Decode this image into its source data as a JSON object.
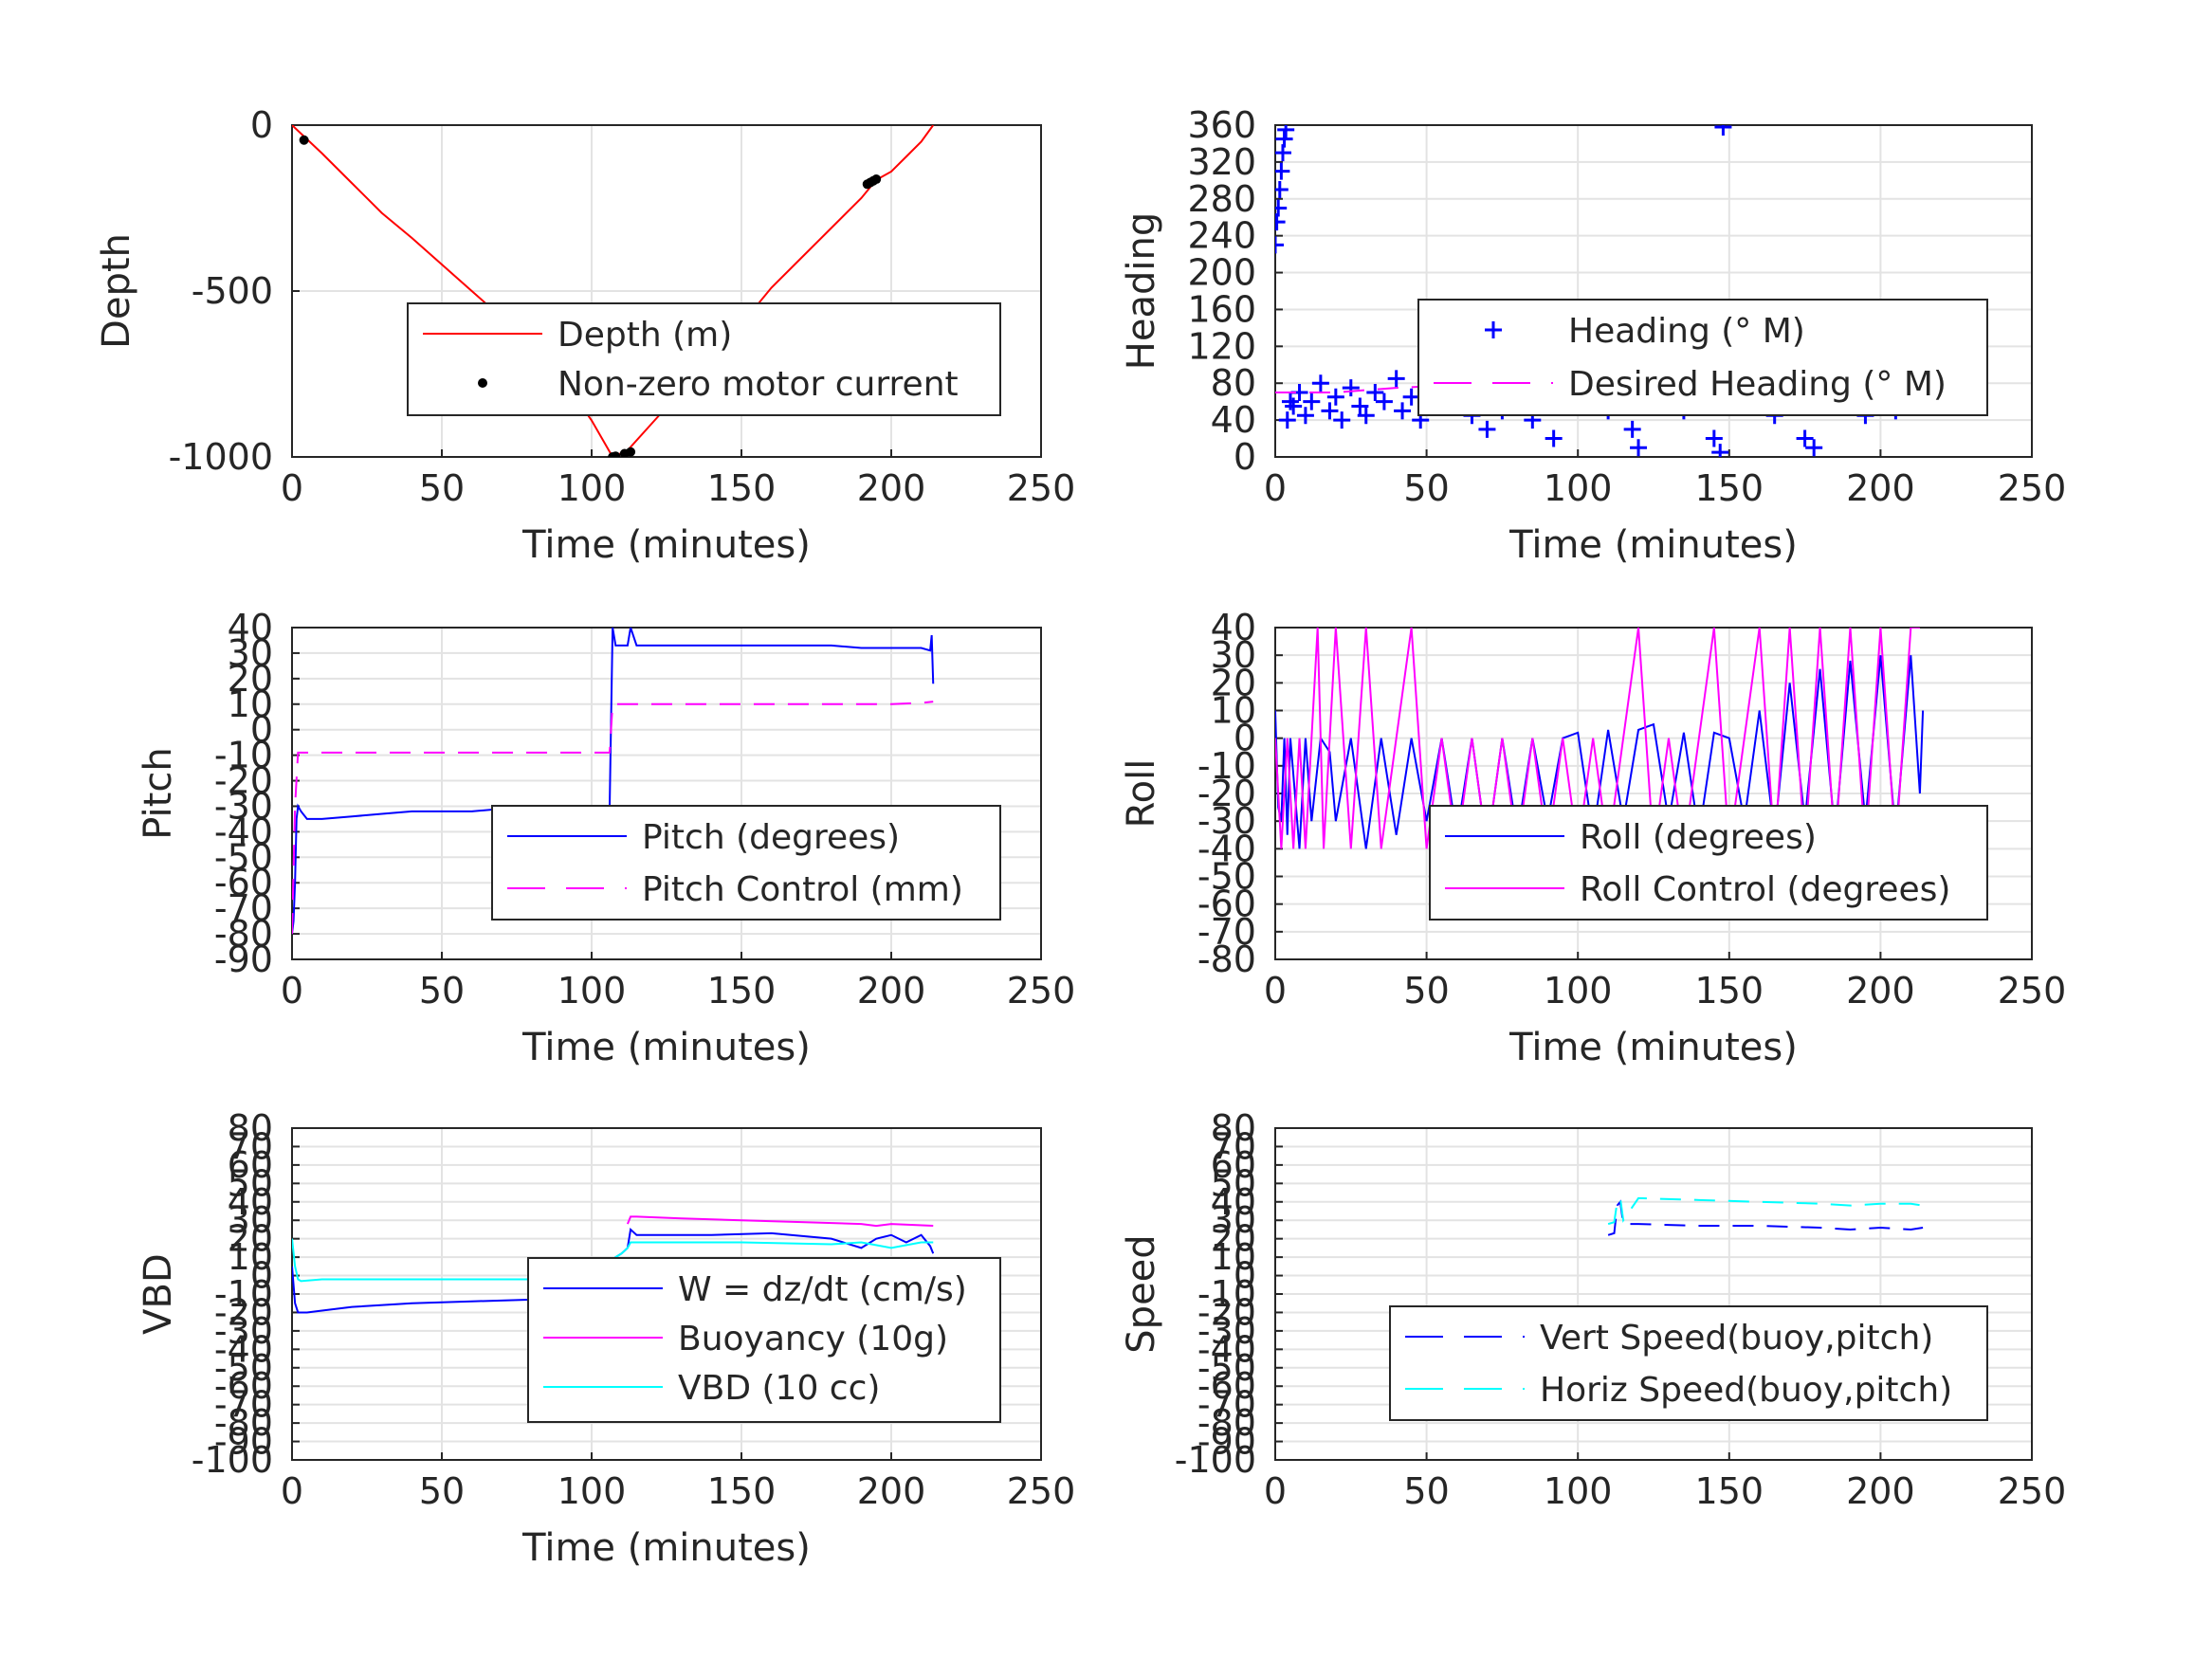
{
  "chart_data": [
    {
      "type": "line",
      "panel": "depth",
      "xlabel": "Time (minutes)",
      "ylabel": "Depth",
      "xlim": [
        0,
        250
      ],
      "ylim": [
        -1000,
        0
      ],
      "xticks": [
        0,
        50,
        100,
        150,
        200,
        250
      ],
      "yticks": [
        -1000,
        -500,
        0
      ],
      "xtick_labels": [
        "0",
        "50",
        "100",
        "150",
        "200",
        "250"
      ],
      "ytick_labels": [
        "-1000",
        "-500",
        "0"
      ],
      "grid": true,
      "legend_position": "center-right",
      "series": [
        {
          "name": "Depth (m)",
          "color": "#ff0000",
          "style": "solid",
          "marker": "none",
          "x": [
            0,
            10,
            20,
            30,
            40,
            50,
            60,
            70,
            80,
            90,
            100,
            107,
            112,
            120,
            130,
            140,
            150,
            160,
            170,
            180,
            190,
            195,
            200,
            205,
            210,
            214
          ],
          "y": [
            0,
            -85,
            -175,
            -265,
            -340,
            -420,
            -500,
            -580,
            -660,
            -760,
            -890,
            -1000,
            -980,
            -900,
            -800,
            -700,
            -600,
            -490,
            -400,
            -310,
            -220,
            -165,
            -140,
            -95,
            -50,
            0
          ]
        },
        {
          "name": "Non-zero motor current",
          "color": "#000000",
          "style": "none",
          "marker": "dot",
          "x": [
            4,
            107,
            108,
            111,
            113,
            192,
            193,
            194,
            195
          ],
          "y": [
            -45,
            -1000,
            -998,
            -990,
            -985,
            -178,
            -173,
            -168,
            -163
          ]
        }
      ]
    },
    {
      "type": "scatter",
      "panel": "heading",
      "xlabel": "Time (minutes)",
      "ylabel": "Heading",
      "xlim": [
        0,
        250
      ],
      "ylim": [
        0,
        360
      ],
      "xticks": [
        0,
        50,
        100,
        150,
        200,
        250
      ],
      "yticks": [
        0,
        40,
        80,
        120,
        160,
        200,
        240,
        280,
        320,
        360
      ],
      "xtick_labels": [
        "0",
        "50",
        "100",
        "150",
        "200",
        "250"
      ],
      "ytick_labels": [
        "0",
        "40",
        "80",
        "120",
        "160",
        "200",
        "240",
        "280",
        "320",
        "360"
      ],
      "grid": true,
      "legend_position": "center-right",
      "series": [
        {
          "name": "Heading (° M)",
          "color": "#0000ff",
          "style": "none",
          "marker": "plus",
          "x": [
            0,
            0.5,
            1,
            1.5,
            2,
            2.5,
            3,
            3.5,
            4,
            5,
            6,
            8,
            10,
            12,
            15,
            18,
            20,
            22,
            25,
            28,
            30,
            33,
            36,
            40,
            42,
            45,
            48,
            50,
            55,
            60,
            65,
            70,
            72,
            75,
            80,
            85,
            90,
            92,
            95,
            100,
            105,
            110,
            115,
            118,
            120,
            123,
            125,
            128,
            130,
            135,
            140,
            145,
            147,
            148,
            150,
            152,
            155,
            160,
            165,
            170,
            175,
            178,
            180,
            185,
            190,
            195,
            200,
            205,
            210,
            214
          ],
          "y": [
            230,
            255,
            270,
            290,
            310,
            330,
            345,
            355,
            40,
            60,
            55,
            70,
            45,
            60,
            80,
            50,
            65,
            40,
            75,
            55,
            45,
            70,
            60,
            85,
            50,
            65,
            40,
            60,
            55,
            75,
            45,
            30,
            65,
            50,
            60,
            40,
            70,
            20,
            55,
            60,
            80,
            50,
            90,
            30,
            10,
            60,
            110,
            130,
            70,
            50,
            75,
            20,
            5,
            358,
            100,
            140,
            60,
            80,
            45,
            65,
            20,
            10,
            60,
            55,
            70,
            45,
            60,
            50,
            75,
            60
          ]
        },
        {
          "name": "Desired Heading (° M)",
          "color": "#ff00ff",
          "style": "dash",
          "marker": "none",
          "x": [
            0,
            20,
            40,
            60,
            80,
            100,
            120,
            140,
            160,
            180,
            200,
            214
          ],
          "y": [
            70,
            70,
            75,
            78,
            80,
            80,
            60,
            60,
            60,
            55,
            55,
            55
          ]
        }
      ]
    },
    {
      "type": "line",
      "panel": "pitch",
      "xlabel": "Time (minutes)",
      "ylabel": "Pitch",
      "xlim": [
        0,
        250
      ],
      "ylim": [
        -90,
        40
      ],
      "xticks": [
        0,
        50,
        100,
        150,
        200,
        250
      ],
      "yticks": [
        -90,
        -80,
        -70,
        -60,
        -50,
        -40,
        -30,
        -20,
        -10,
        0,
        10,
        20,
        30,
        40
      ],
      "xtick_labels": [
        "0",
        "50",
        "100",
        "150",
        "200",
        "250"
      ],
      "ytick_labels": [
        "-90",
        "-80",
        "-70",
        "-60",
        "-50",
        "-40",
        "-30",
        "-20",
        "-10",
        "0",
        "10",
        "20",
        "30",
        "40"
      ],
      "grid": true,
      "legend_position": "center-right",
      "series": [
        {
          "name": "Pitch (degrees)",
          "color": "#0000ff",
          "style": "solid",
          "marker": "none",
          "x": [
            0,
            0.5,
            1,
            1.5,
            2,
            3,
            5,
            10,
            20,
            30,
            40,
            50,
            60,
            70,
            80,
            90,
            100,
            106,
            107,
            108,
            110,
            112,
            113,
            115,
            120,
            130,
            140,
            150,
            160,
            170,
            180,
            190,
            200,
            205,
            210,
            213,
            213.5,
            214
          ],
          "y": [
            -80,
            -75,
            -60,
            -35,
            -30,
            -32,
            -35,
            -35,
            -34,
            -33,
            -32,
            -32,
            -32,
            -31,
            -31,
            -31,
            -31,
            -31,
            40,
            33,
            33,
            33,
            40,
            33,
            33,
            33,
            33,
            33,
            33,
            33,
            33,
            32,
            32,
            32,
            32,
            31,
            37,
            18
          ]
        },
        {
          "name": "Pitch Control (mm)",
          "color": "#ff00ff",
          "style": "dash",
          "marker": "none",
          "x": [
            0,
            1,
            2,
            50,
            100,
            106,
            107,
            108,
            150,
            200,
            210,
            214
          ],
          "y": [
            -80,
            -30,
            -9,
            -9,
            -9,
            -9,
            10,
            10,
            10,
            10,
            10.5,
            11
          ]
        }
      ]
    },
    {
      "type": "line",
      "panel": "roll",
      "xlabel": "Time (minutes)",
      "ylabel": "Roll",
      "xlim": [
        0,
        250
      ],
      "ylim": [
        -80,
        40
      ],
      "xticks": [
        0,
        50,
        100,
        150,
        200,
        250
      ],
      "yticks": [
        -80,
        -70,
        -60,
        -50,
        -40,
        -30,
        -20,
        -10,
        0,
        10,
        20,
        30,
        40
      ],
      "xtick_labels": [
        "0",
        "50",
        "100",
        "150",
        "200",
        "250"
      ],
      "ytick_labels": [
        "-80",
        "-70",
        "-60",
        "-50",
        "-40",
        "-30",
        "-20",
        "-10",
        "0",
        "10",
        "20",
        "30",
        "40"
      ],
      "grid": true,
      "legend_position": "center-right",
      "series": [
        {
          "name": "Roll (degrees)",
          "color": "#0000ff",
          "style": "solid",
          "marker": "none",
          "x": [
            0,
            1,
            2,
            3,
            4,
            5,
            8,
            10,
            12,
            15,
            18,
            20,
            25,
            30,
            35,
            40,
            45,
            50,
            55,
            60,
            65,
            70,
            75,
            80,
            85,
            90,
            95,
            100,
            105,
            110,
            115,
            120,
            125,
            130,
            135,
            140,
            145,
            150,
            155,
            160,
            165,
            170,
            175,
            180,
            185,
            190,
            195,
            200,
            205,
            210,
            213,
            214
          ],
          "y": [
            10,
            -25,
            -30,
            0,
            -35,
            0,
            -40,
            0,
            -30,
            0,
            -5,
            -30,
            0,
            -40,
            0,
            -35,
            0,
            -30,
            0,
            -35,
            0,
            -40,
            0,
            -35,
            0,
            -30,
            0,
            2,
            -35,
            3,
            -30,
            3,
            5,
            -30,
            2,
            -35,
            2,
            0,
            -30,
            10,
            -35,
            20,
            -30,
            25,
            -35,
            28,
            -30,
            30,
            -35,
            30,
            -20,
            10
          ]
        },
        {
          "name": "Roll Control (degrees)",
          "color": "#ff00ff",
          "style": "solid",
          "marker": "none",
          "x": [
            0,
            2,
            4,
            6,
            8,
            10,
            12,
            14,
            16,
            18,
            20,
            25,
            30,
            35,
            40,
            45,
            50,
            55,
            60,
            65,
            70,
            75,
            80,
            85,
            90,
            95,
            100,
            105,
            110,
            115,
            120,
            125,
            130,
            135,
            140,
            145,
            150,
            155,
            160,
            165,
            170,
            175,
            180,
            185,
            190,
            195,
            200,
            205,
            210,
            213
          ],
          "y": [
            0,
            -40,
            0,
            -40,
            0,
            -40,
            0,
            40,
            -40,
            0,
            40,
            -40,
            40,
            -40,
            0,
            40,
            -40,
            0,
            -40,
            0,
            -40,
            0,
            -40,
            0,
            -40,
            0,
            -40,
            0,
            -40,
            0,
            40,
            -40,
            0,
            -40,
            0,
            40,
            -40,
            0,
            40,
            -40,
            40,
            -40,
            40,
            -40,
            40,
            -40,
            40,
            -40,
            40,
            40
          ]
        }
      ]
    },
    {
      "type": "line",
      "panel": "vbd",
      "xlabel": "Time (minutes)",
      "ylabel": "VBD",
      "xlim": [
        0,
        250
      ],
      "ylim": [
        -100,
        80
      ],
      "xticks": [
        0,
        50,
        100,
        150,
        200,
        250
      ],
      "yticks": [
        -100,
        -90,
        -80,
        -70,
        -60,
        -50,
        -40,
        -30,
        -20,
        -10,
        0,
        10,
        20,
        30,
        40,
        50,
        60,
        70,
        80
      ],
      "xtick_labels": [
        "0",
        "50",
        "100",
        "150",
        "200",
        "250"
      ],
      "ytick_labels": [
        "-100",
        "-90",
        "-80",
        "-70",
        "-60",
        "-50",
        "-40",
        "-30",
        "-20",
        "-10",
        "0",
        "10",
        "20",
        "30",
        "40",
        "50",
        "60",
        "70",
        "80"
      ],
      "grid": true,
      "legend_position": "center-right",
      "series": [
        {
          "name": "W = dz/dt (cm/s)",
          "color": "#0000ff",
          "style": "solid",
          "marker": "none",
          "x": [
            0,
            1,
            2,
            5,
            10,
            20,
            40,
            60,
            80,
            100,
            106,
            107,
            108,
            110,
            112,
            113,
            115,
            120,
            140,
            160,
            180,
            190,
            195,
            200,
            205,
            210,
            213,
            214
          ],
          "y": [
            5,
            -15,
            -20,
            -20,
            -19,
            -17,
            -15,
            -14,
            -13,
            -12,
            -12,
            5,
            10,
            12,
            15,
            25,
            22,
            22,
            22,
            23,
            20,
            15,
            20,
            22,
            18,
            22,
            16,
            12
          ]
        },
        {
          "name": "Buoyancy (10g)",
          "color": "#ff00ff",
          "style": "solid",
          "marker": "none",
          "x": [
            112,
            113,
            115,
            130,
            150,
            170,
            190,
            195,
            200,
            214
          ],
          "y": [
            28,
            32,
            32,
            31,
            30,
            29,
            28,
            27,
            28,
            27
          ]
        },
        {
          "name": "VBD (10 cc)",
          "color": "#00ffff",
          "style": "solid",
          "marker": "none",
          "x": [
            0,
            1,
            2,
            3,
            10,
            50,
            100,
            107,
            108,
            110,
            112,
            113,
            120,
            150,
            180,
            190,
            200,
            210,
            214
          ],
          "y": [
            20,
            5,
            -2,
            -3,
            -2,
            -2,
            -2,
            -2,
            10,
            12,
            15,
            18,
            18,
            18,
            17,
            18,
            15,
            18,
            18
          ]
        }
      ]
    },
    {
      "type": "line",
      "panel": "speed",
      "xlabel": "",
      "ylabel": "Speed",
      "xlim": [
        0,
        250
      ],
      "ylim": [
        -100,
        80
      ],
      "xticks": [
        0,
        50,
        100,
        150,
        200,
        250
      ],
      "yticks": [
        -100,
        -90,
        -80,
        -70,
        -60,
        -50,
        -40,
        -30,
        -20,
        -10,
        0,
        10,
        20,
        30,
        40,
        50,
        60,
        70,
        80
      ],
      "xtick_labels": [
        "0",
        "50",
        "100",
        "150",
        "200",
        "250"
      ],
      "ytick_labels": [
        "-100",
        "-90",
        "-80",
        "-70",
        "-60",
        "-50",
        "-40",
        "-30",
        "-20",
        "-10",
        "0",
        "10",
        "20",
        "30",
        "40",
        "50",
        "60",
        "70",
        "80"
      ],
      "grid": true,
      "legend_position": "center-right",
      "series": [
        {
          "name": "Vert Speed(buoy,pitch)",
          "color": "#0000ff",
          "style": "dash",
          "marker": "none",
          "x": [
            110,
            112,
            113,
            114,
            115,
            120,
            140,
            160,
            180,
            190,
            200,
            210,
            214
          ],
          "y": [
            22,
            23,
            38,
            40,
            28,
            28,
            27,
            27,
            26,
            25,
            26,
            25,
            26
          ]
        },
        {
          "name": "Horiz Speed(buoy,pitch)",
          "color": "#00ffff",
          "style": "dash",
          "marker": "none",
          "x": [
            110,
            112,
            113,
            114,
            115,
            120,
            140,
            160,
            180,
            190,
            200,
            210,
            214
          ],
          "y": [
            28,
            29,
            40,
            42,
            30,
            42,
            41,
            40,
            39,
            38,
            39,
            39,
            38
          ]
        }
      ]
    }
  ]
}
